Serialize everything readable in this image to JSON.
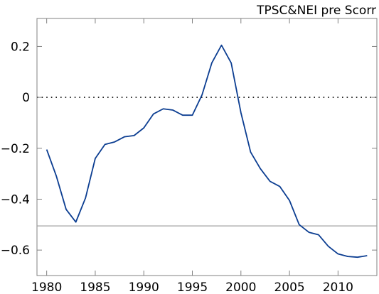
{
  "chart_data": {
    "type": "line",
    "title": "TPSC&NEI pre Scorr",
    "xlabel": "",
    "ylabel": "",
    "xlim": [
      1979,
      2014
    ],
    "ylim": [
      -0.7,
      0.31
    ],
    "xticks": [
      1980,
      1985,
      1990,
      1995,
      2000,
      2005,
      2010
    ],
    "xtick_labels": [
      "1980",
      "1985",
      "1990",
      "1995",
      "2000",
      "2005",
      "2010"
    ],
    "yticks": [
      0.2,
      0,
      -0.2,
      -0.4,
      -0.6
    ],
    "ytick_labels": [
      "0.2",
      "0",
      "−0.2",
      "−0.4",
      "−0.6"
    ],
    "grid": false,
    "reference_lines": [
      {
        "y": 0,
        "style": "dotted",
        "color": "#000000"
      },
      {
        "y": -0.505,
        "style": "solid",
        "color": "#a0a0a0"
      }
    ],
    "series": [
      {
        "color": "#0b3d91",
        "x": [
          1980,
          1981,
          1982,
          1983,
          1984,
          1985,
          1986,
          1987,
          1988,
          1989,
          1990,
          1991,
          1992,
          1993,
          1994,
          1995,
          1996,
          1997,
          1998,
          1999,
          2000,
          2001,
          2002,
          2003,
          2004,
          2005,
          2006,
          2007,
          2008,
          2009,
          2010,
          2011,
          2012,
          2013
        ],
        "values": [
          -0.205,
          -0.31,
          -0.44,
          -0.49,
          -0.395,
          -0.24,
          -0.185,
          -0.175,
          -0.155,
          -0.15,
          -0.12,
          -0.065,
          -0.045,
          -0.05,
          -0.07,
          -0.07,
          0.01,
          0.135,
          0.205,
          0.135,
          -0.06,
          -0.215,
          -0.28,
          -0.33,
          -0.35,
          -0.405,
          -0.5,
          -0.53,
          -0.54,
          -0.585,
          -0.615,
          -0.625,
          -0.628,
          -0.622
        ]
      }
    ]
  }
}
